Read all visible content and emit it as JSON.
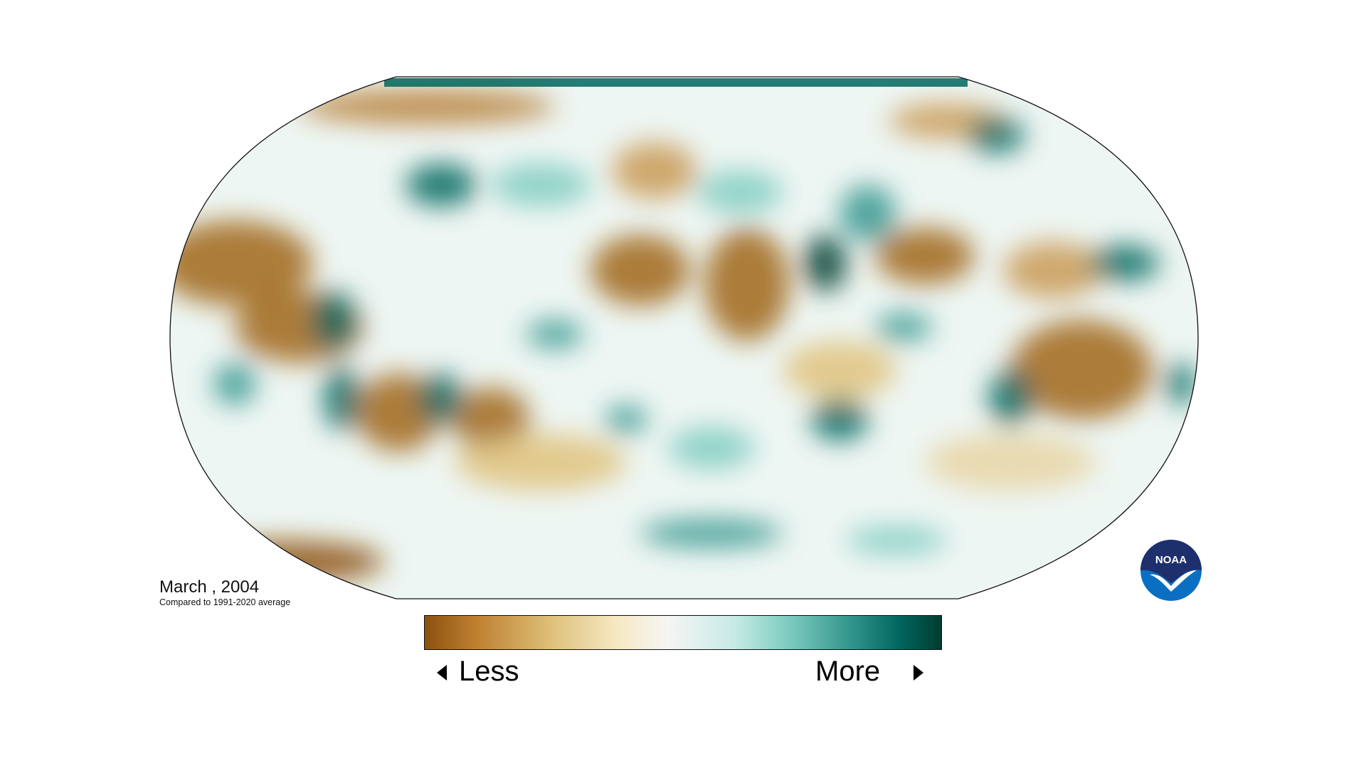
{
  "title": {
    "date": "March , 2004",
    "subtitle": "Compared to 1991-2020 average"
  },
  "legend": {
    "low_label": "Less",
    "high_label": "More",
    "colors": [
      "#8c5110",
      "#bf8030",
      "#dfc27d",
      "#f6e8c3",
      "#f5f5f5",
      "#c7eae5",
      "#80cdc1",
      "#35978f",
      "#01665e",
      "#003c30"
    ]
  },
  "map": {
    "projection": "Robinson",
    "variable": "precipitation anomaly",
    "dry_color": "#a0661a",
    "wet_color": "#01665e"
  },
  "logo": {
    "text": "NOAA",
    "colors": [
      "#1e2f6e",
      "#0a6fc2",
      "#ffffff"
    ]
  }
}
